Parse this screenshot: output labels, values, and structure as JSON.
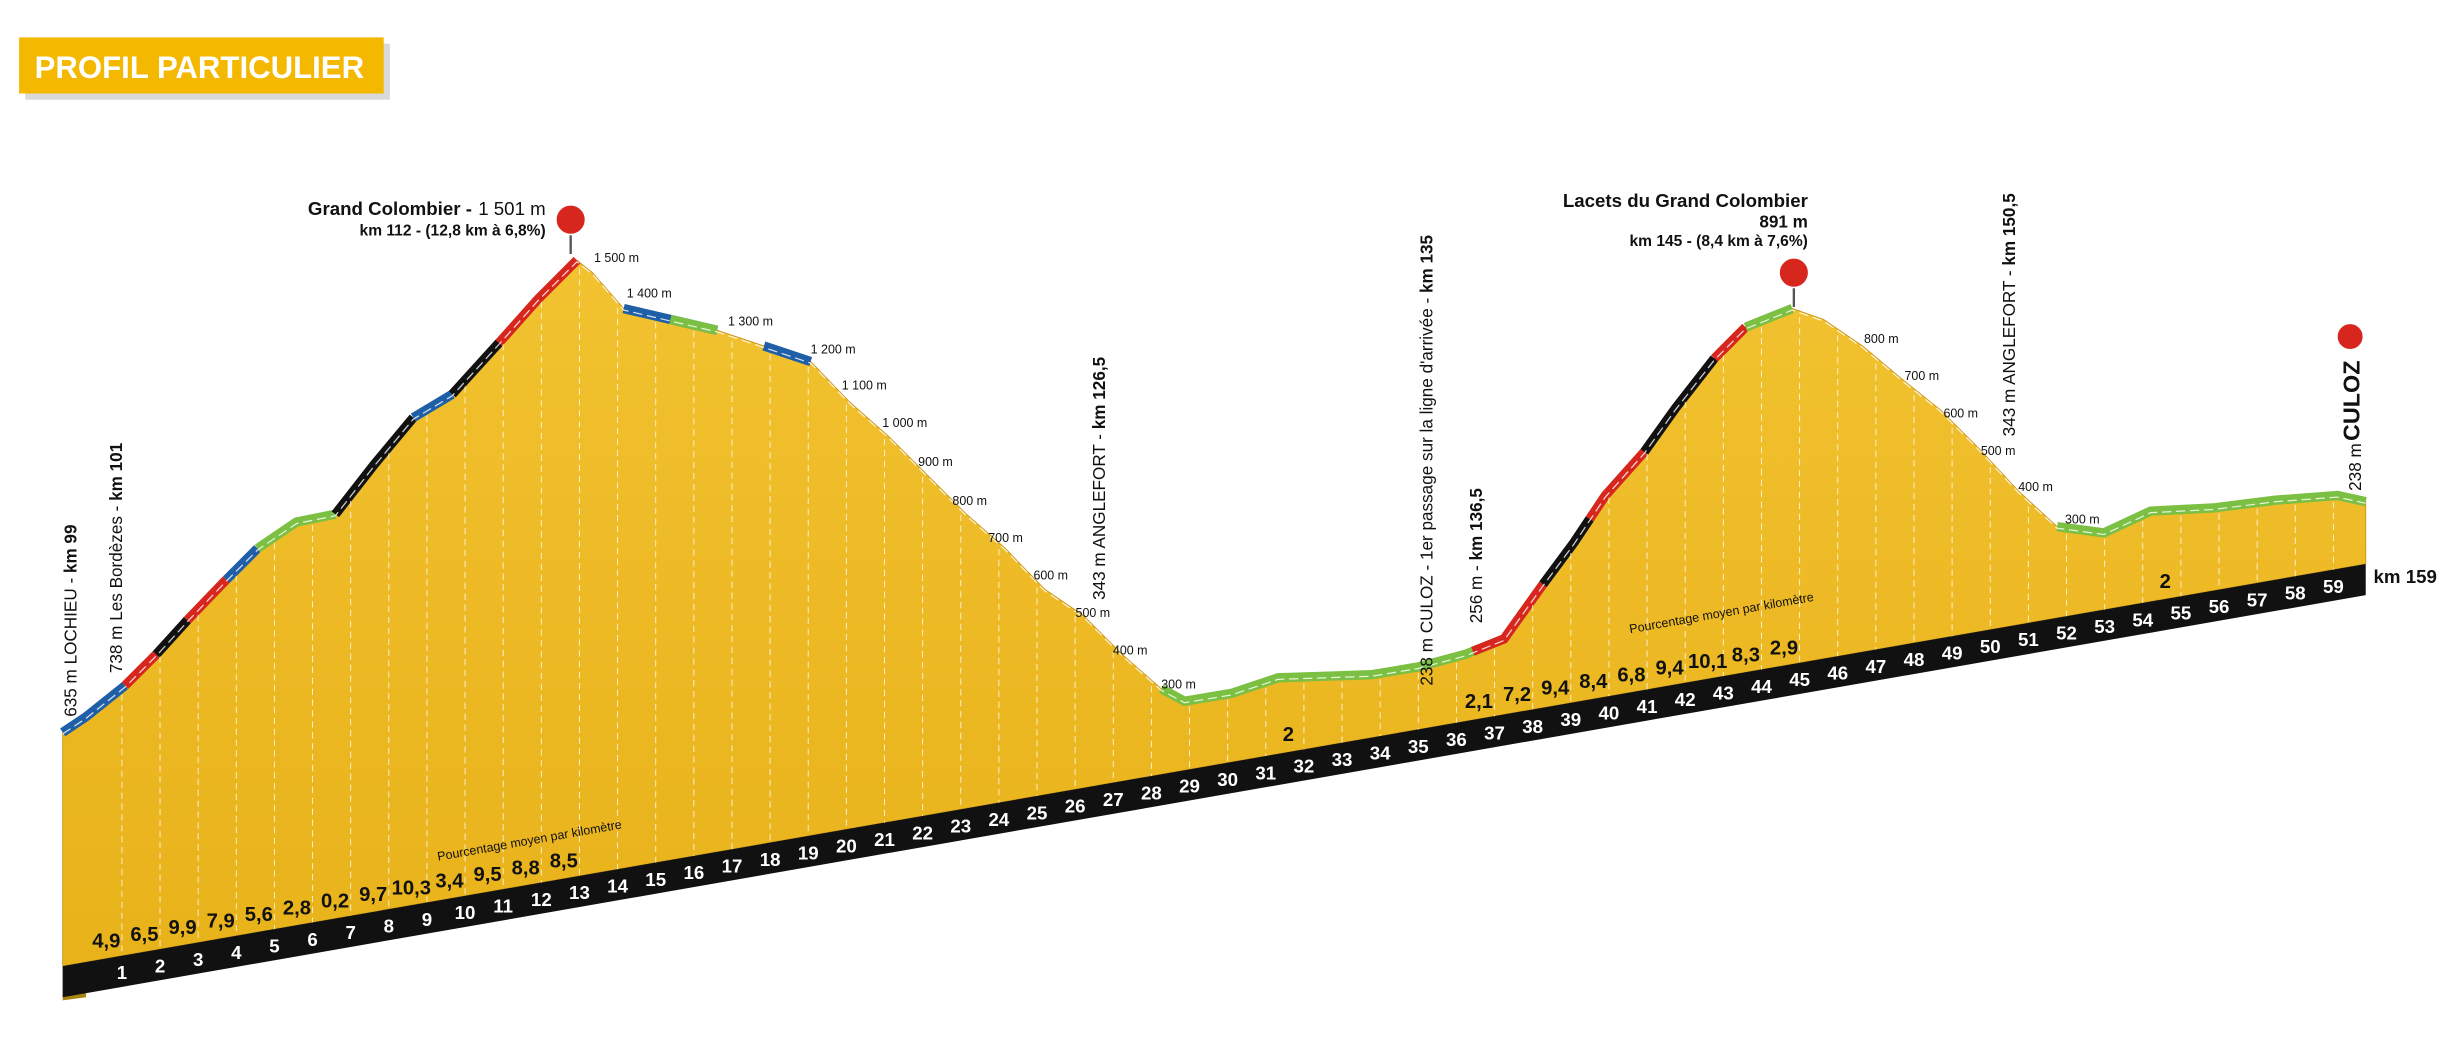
{
  "badge": "PROFIL PARTICULIER",
  "summits": [
    {
      "name": "Grand Colombier -",
      "altitude": "1 501 m",
      "detail": "km 112 - (12,8 km à 6,8%)"
    },
    {
      "name": "Lacets du Grand Colombier",
      "altitude": "891 m",
      "detail": "km 145 - (8,4 km à 7,6%)"
    }
  ],
  "places": [
    {
      "text": "635 m LOCHIEU - ",
      "km": "km 99"
    },
    {
      "text": "738 m Les Bordèzes - ",
      "km": "km 101"
    },
    {
      "text": "343 m ANGLEFORT - ",
      "km": "km 126,5"
    },
    {
      "text": "238 m CULOZ - 1er passage sur la ligne d'arrivée - ",
      "km": "km 135"
    },
    {
      "text": "256 m - ",
      "km": "km 136,5"
    },
    {
      "text": "343 m ANGLEFORT - ",
      "km": "km 150,5"
    }
  ],
  "finish": {
    "altitude": "238 m",
    "name": "CULOZ",
    "km": "km 159"
  },
  "altitudes": [
    "1 500 m",
    "1 400 m",
    "1 300 m",
    "1 200 m",
    "1 100 m",
    "1 000 m",
    "900 m",
    "800 m",
    "700 m",
    "600 m",
    "500 m",
    "400 m",
    "300 m",
    "800 m",
    "700 m",
    "600 m",
    "500 m",
    "400 m",
    "300 m"
  ],
  "km_marks": [
    1,
    2,
    3,
    4,
    5,
    6,
    7,
    8,
    9,
    10,
    11,
    12,
    13,
    14,
    15,
    16,
    17,
    18,
    19,
    20,
    21,
    22,
    23,
    24,
    25,
    26,
    27,
    28,
    29,
    30,
    31,
    32,
    33,
    34,
    35,
    36,
    37,
    38,
    39,
    40,
    41,
    42,
    43,
    44,
    45,
    46,
    47,
    48,
    49,
    50,
    51,
    52,
    53,
    54,
    55,
    56,
    57,
    58,
    59
  ],
  "gradients": [
    "4,9",
    "6,5",
    "9,9",
    "7,9",
    "5,6",
    "2,8",
    "0,2",
    "9,7",
    "10,3",
    "3,4",
    "9,5",
    "8,8",
    "8,5",
    null,
    null,
    null,
    null,
    null,
    null,
    null,
    null,
    null,
    null,
    null,
    null,
    null,
    null,
    null,
    null,
    null,
    null,
    "2",
    null,
    null,
    null,
    null,
    "2,1",
    "7,2",
    "9,4",
    "8,4",
    "6,8",
    "9,4",
    "10,1",
    "8,3",
    "2,9",
    null,
    null,
    null,
    null,
    null,
    null,
    null,
    null,
    null,
    "2",
    null,
    null,
    null,
    null
  ],
  "legend": [
    "Pourcentage moyen par kilomètre",
    "Pourcentage moyen par kilomètre"
  ]
}
